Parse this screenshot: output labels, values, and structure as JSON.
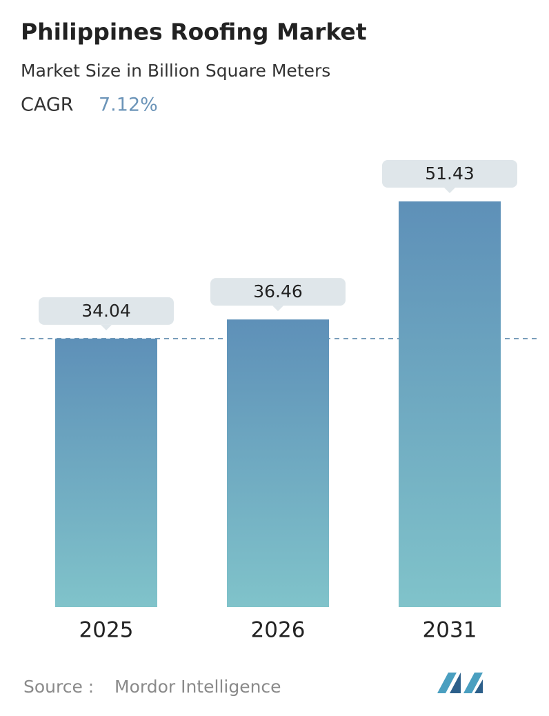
{
  "chart_data": {
    "type": "bar",
    "title": "Philippines Roofing Market",
    "subtitle": "Market Size in Billion Square Meters",
    "cagr_label": "CAGR",
    "cagr_value": "7.12%",
    "categories": [
      "2025",
      "2026",
      "2031"
    ],
    "values": [
      34.04,
      36.46,
      51.43
    ],
    "source_label": "Source :",
    "source": "Mordor Intelligence"
  }
}
